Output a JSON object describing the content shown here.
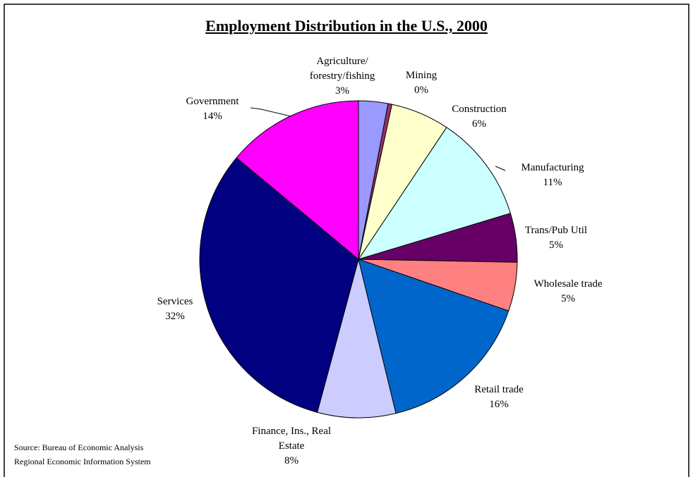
{
  "chart_data": {
    "type": "pie",
    "title": "Employment Distribution in the U.S., 2000",
    "categories": [
      "Agriculture/\nforestry/fishing",
      "Mining",
      "Construction",
      "Manufacturing",
      "Trans/Pub Util",
      "Wholesale trade",
      "Retail trade",
      "Finance, Ins., Real\nEstate",
      "Services",
      "Government"
    ],
    "values": [
      3,
      0.4,
      6,
      11,
      5,
      5,
      16,
      8,
      32,
      14
    ],
    "value_labels": [
      "3%",
      "0%",
      "6%",
      "11%",
      "5%",
      "5%",
      "16%",
      "8%",
      "32%",
      "14%"
    ],
    "colors": [
      "#9999ff",
      "#993366",
      "#ffffcc",
      "#ccffff",
      "#660066",
      "#ff8080",
      "#0066cc",
      "#ccccff",
      "#000080",
      "#ff00ff"
    ],
    "source": [
      "Source: Bureau of Economic Analysis",
      "Regional Economic Information System"
    ]
  }
}
